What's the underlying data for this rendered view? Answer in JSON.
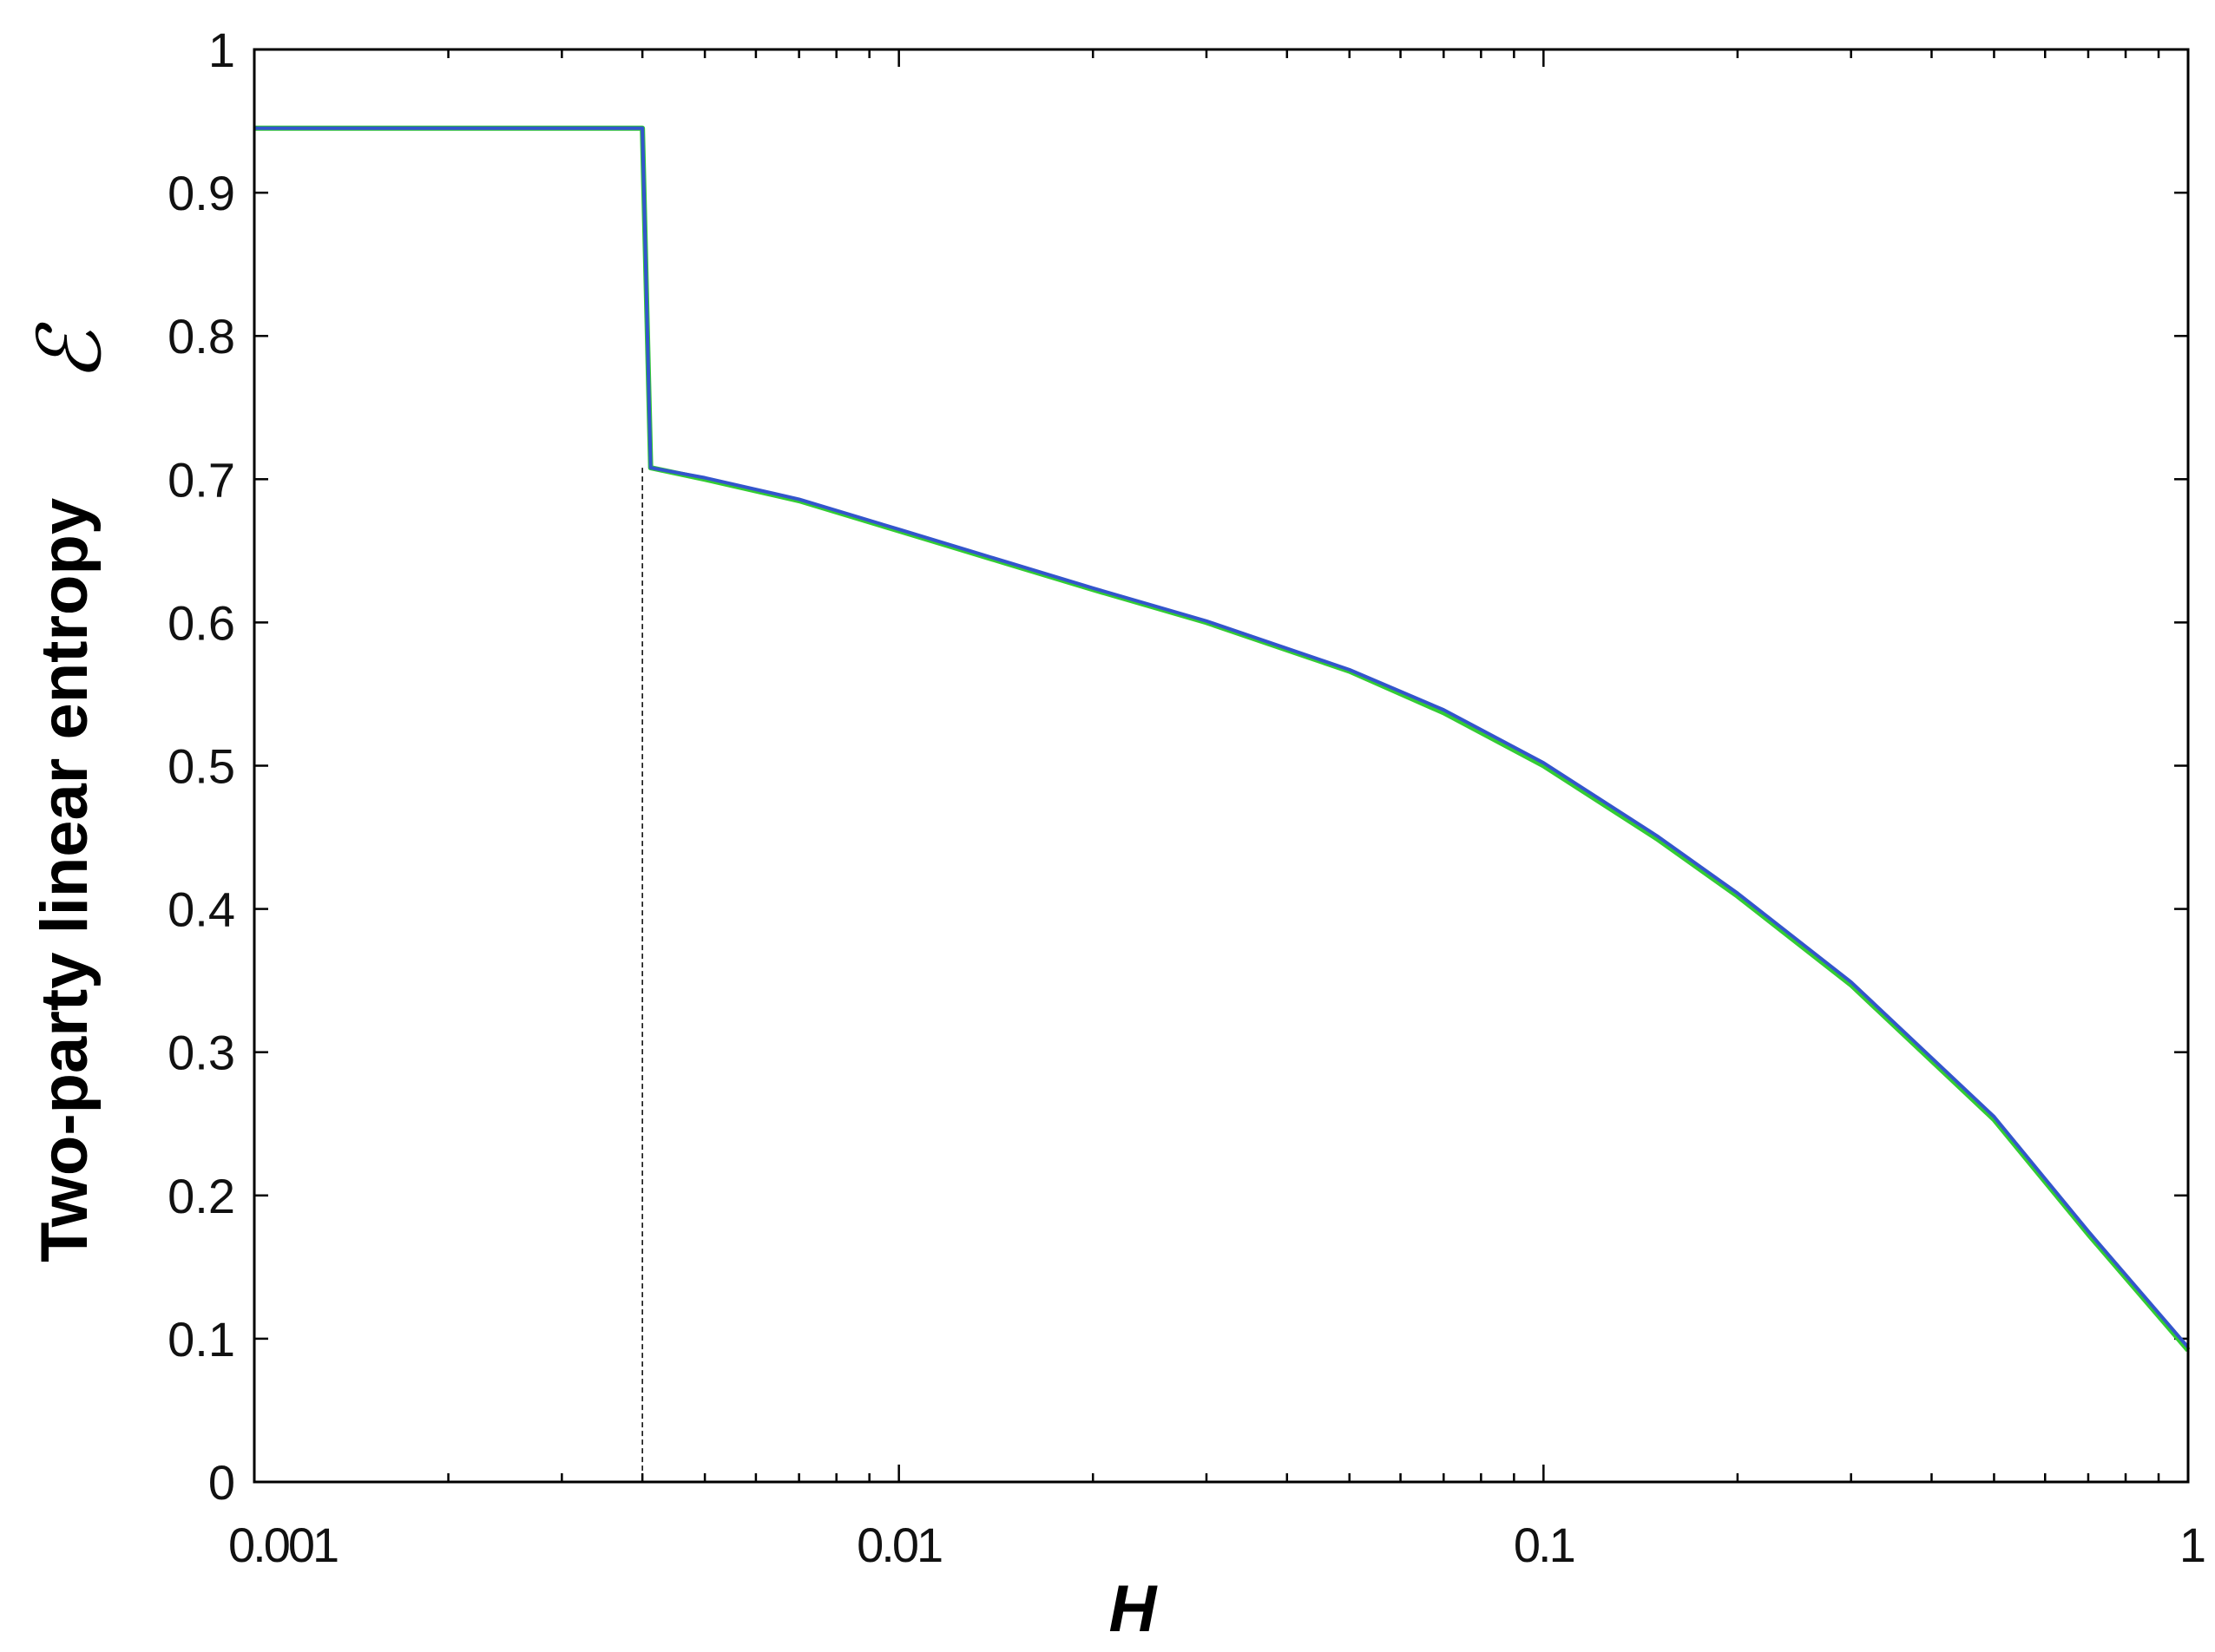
{
  "chart_data": {
    "type": "line",
    "xscale": "log",
    "xlim": [
      0.001,
      1
    ],
    "ylim": [
      0,
      1
    ],
    "xlabel": "H",
    "ylabel": "Two-party linear entropy",
    "ylabel_symbol": "ℰ",
    "xticks": [
      {
        "value": 0.001,
        "label": "0.001"
      },
      {
        "value": 0.01,
        "label": "0.01"
      },
      {
        "value": 0.1,
        "label": "0.1"
      },
      {
        "value": 1,
        "label": "1"
      }
    ],
    "yticks": [
      {
        "value": 0,
        "label": "0"
      },
      {
        "value": 0.1,
        "label": "0.1"
      },
      {
        "value": 0.2,
        "label": "0.2"
      },
      {
        "value": 0.3,
        "label": "0.3"
      },
      {
        "value": 0.4,
        "label": "0.4"
      },
      {
        "value": 0.5,
        "label": "0.5"
      },
      {
        "value": 0.6,
        "label": "0.6"
      },
      {
        "value": 0.7,
        "label": "0.7"
      },
      {
        "value": 0.8,
        "label": "0.8"
      },
      {
        "value": 0.9,
        "label": "0.9"
      },
      {
        "value": 1,
        "label": "1"
      }
    ],
    "grid": false,
    "reference_line": {
      "x": 0.004,
      "style": "dashed"
    },
    "series": [
      {
        "color": "#33cc33",
        "points": [
          [
            0.001,
            0.945
          ],
          [
            0.004,
            0.945
          ],
          [
            0.00412,
            0.708
          ],
          [
            0.005,
            0.7
          ],
          [
            0.007,
            0.685
          ],
          [
            0.01,
            0.664
          ],
          [
            0.015,
            0.64
          ],
          [
            0.02,
            0.623
          ],
          [
            0.03,
            0.6
          ],
          [
            0.05,
            0.566
          ],
          [
            0.07,
            0.537
          ],
          [
            0.1,
            0.5
          ],
          [
            0.15,
            0.449
          ],
          [
            0.2,
            0.409
          ],
          [
            0.3,
            0.347
          ],
          [
            0.5,
            0.253
          ],
          [
            0.7,
            0.173
          ],
          [
            1,
            0.092
          ]
        ]
      },
      {
        "color": "#3355cc",
        "points": [
          [
            0.001,
            0.945
          ],
          [
            0.004,
            0.945
          ],
          [
            0.00412,
            0.708
          ],
          [
            0.005,
            0.701
          ],
          [
            0.007,
            0.686
          ],
          [
            0.01,
            0.665
          ],
          [
            0.015,
            0.641
          ],
          [
            0.02,
            0.624
          ],
          [
            0.03,
            0.601
          ],
          [
            0.05,
            0.567
          ],
          [
            0.07,
            0.539
          ],
          [
            0.1,
            0.502
          ],
          [
            0.15,
            0.451
          ],
          [
            0.2,
            0.411
          ],
          [
            0.3,
            0.349
          ],
          [
            0.5,
            0.255
          ],
          [
            0.7,
            0.175
          ],
          [
            1,
            0.094
          ]
        ]
      }
    ]
  }
}
